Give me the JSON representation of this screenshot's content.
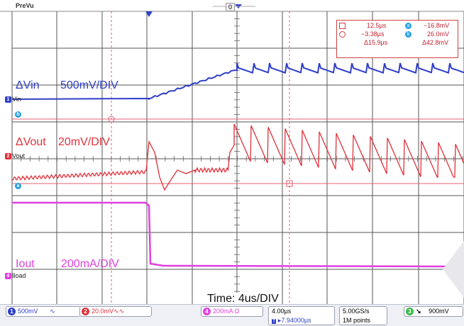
{
  "top_bar": {
    "mode_label": "PreVu",
    "trigger_pos_marker": "0"
  },
  "channels": {
    "vin": {
      "label": "ΔVin",
      "scale": "500mV/DIV",
      "tag": "Vin",
      "color": "#2f3fc8"
    },
    "vout": {
      "label": "ΔVout",
      "scale": "20mV/DIV",
      "tag": "Vout",
      "color": "#e0303a"
    },
    "iout": {
      "label": "Iout",
      "scale": "200mA/DIV",
      "tag": "Iload",
      "color": "#e040e0"
    }
  },
  "time_label": "Time: 4us/DIV",
  "cursor_readout": {
    "t1": "12.5µs",
    "t2": "−3.38µs",
    "dt": "Δ15.9µs",
    "v1": "−16.8mV",
    "v2": "26.0mV",
    "dv": "Δ42.8mV"
  },
  "status_bar": {
    "ch1": "500mV",
    "ch1_suffix": "∿",
    "ch2": "20.0mV",
    "ch2_suffix": "∿∿",
    "ch4": "200mA",
    "ch4_suffix": "Ω",
    "timebase": "4.00µs",
    "trigger_offset": "▸7.94000µs",
    "sample_rate": "5.00GS/s",
    "record_length": "1M points",
    "trigger_level": "900mV"
  }
}
